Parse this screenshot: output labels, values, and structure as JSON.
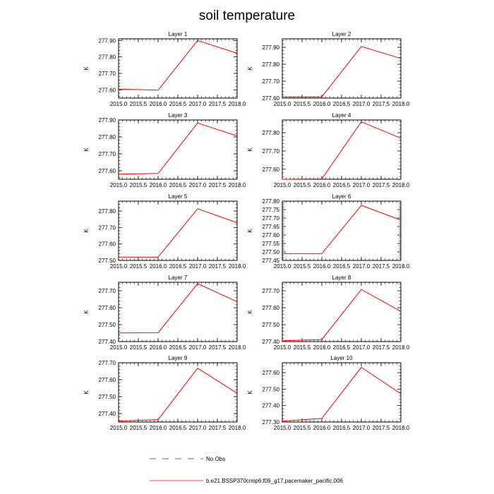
{
  "title": "soil temperature",
  "ylabel": "K",
  "line_color": "#ff0000",
  "legend": {
    "obs_label": "No Obs",
    "obs_color": "#6a5acd",
    "model_label": "b.e21.BSSP370cmip6.f09_g17.pacemaker_pacific.006",
    "model_color": "#ff0000"
  },
  "chart_data": [
    {
      "type": "line",
      "title": "Layer 1",
      "x": [
        2015,
        2016,
        2017,
        2018
      ],
      "y": [
        277.605,
        277.598,
        277.9,
        277.822
      ],
      "xlim": [
        2015,
        2018
      ],
      "ylim": [
        277.55,
        277.91
      ],
      "yticks": [
        277.6,
        277.7,
        277.8,
        277.9
      ],
      "ylabels": [
        "277.60",
        "277.70",
        "277.80",
        "277.90"
      ]
    },
    {
      "type": "line",
      "title": "Layer 2",
      "x": [
        2015,
        2016,
        2017,
        2018
      ],
      "y": [
        277.607,
        277.607,
        277.905,
        277.834
      ],
      "xlim": [
        2015,
        2018
      ],
      "ylim": [
        277.6,
        277.95
      ],
      "yticks": [
        277.6,
        277.7,
        277.8,
        277.9
      ],
      "ylabels": [
        "277.60",
        "277.70",
        "277.80",
        "277.90"
      ]
    },
    {
      "type": "line",
      "title": "Layer 3",
      "x": [
        2015,
        2016,
        2017,
        2018
      ],
      "y": [
        277.58,
        277.584,
        277.882,
        277.806
      ],
      "xlim": [
        2015,
        2018
      ],
      "ylim": [
        277.55,
        277.9
      ],
      "yticks": [
        277.6,
        277.7,
        277.8,
        277.9
      ],
      "ylabels": [
        "277.60",
        "277.70",
        "277.80",
        "277.90"
      ]
    },
    {
      "type": "line",
      "title": "Layer 4",
      "x": [
        2015,
        2016,
        2017,
        2018
      ],
      "y": [
        277.545,
        277.547,
        277.86,
        277.77
      ],
      "xlim": [
        2015,
        2018
      ],
      "ylim": [
        277.545,
        277.87
      ],
      "yticks": [
        277.6,
        277.7,
        277.8
      ],
      "ylabels": [
        "277.60",
        "277.70",
        "277.80"
      ]
    },
    {
      "type": "line",
      "title": "Layer 5",
      "x": [
        2015,
        2016,
        2017,
        2018
      ],
      "y": [
        277.52,
        277.52,
        277.814,
        277.729
      ],
      "xlim": [
        2015,
        2018
      ],
      "ylim": [
        277.5,
        277.86
      ],
      "yticks": [
        277.5,
        277.6,
        277.7,
        277.8
      ],
      "ylabels": [
        "277.50",
        "277.60",
        "277.70",
        "277.80"
      ]
    },
    {
      "type": "line",
      "title": "Layer 6",
      "x": [
        2015,
        2016,
        2017,
        2018
      ],
      "y": [
        277.49,
        277.49,
        277.775,
        277.688
      ],
      "xlim": [
        2015,
        2018
      ],
      "ylim": [
        277.45,
        277.8
      ],
      "yticks": [
        277.45,
        277.5,
        277.55,
        277.6,
        277.65,
        277.7,
        277.75,
        277.8
      ],
      "ylabels": [
        "277.45",
        "277.50",
        "277.55",
        "277.60",
        "277.65",
        "277.70",
        "277.75",
        "277.80"
      ]
    },
    {
      "type": "line",
      "title": "Layer 7",
      "x": [
        2015,
        2016,
        2017,
        2018
      ],
      "y": [
        277.451,
        277.452,
        277.742,
        277.636
      ],
      "xlim": [
        2015,
        2018
      ],
      "ylim": [
        277.4,
        277.75
      ],
      "yticks": [
        277.4,
        277.5,
        277.6,
        277.7
      ],
      "ylabels": [
        "277.40",
        "277.50",
        "277.60",
        "277.70"
      ]
    },
    {
      "type": "line",
      "title": "Layer 8",
      "x": [
        2015,
        2016,
        2017,
        2018
      ],
      "y": [
        277.405,
        277.412,
        277.708,
        277.578
      ],
      "xlim": [
        2015,
        2018
      ],
      "ylim": [
        277.4,
        277.75
      ],
      "yticks": [
        277.4,
        277.5,
        277.6,
        277.7
      ],
      "ylabels": [
        "277.40",
        "277.50",
        "277.60",
        "277.70"
      ]
    },
    {
      "type": "line",
      "title": "Layer 9",
      "x": [
        2015,
        2016,
        2017,
        2018
      ],
      "y": [
        277.356,
        277.364,
        277.668,
        277.52
      ],
      "xlim": [
        2015,
        2018
      ],
      "ylim": [
        277.35,
        277.7
      ],
      "yticks": [
        277.4,
        277.5,
        277.6,
        277.7
      ],
      "ylabels": [
        "277.40",
        "277.50",
        "277.60",
        "277.70"
      ]
    },
    {
      "type": "line",
      "title": "Layer 10",
      "x": [
        2015,
        2016,
        2017,
        2018
      ],
      "y": [
        277.305,
        277.322,
        277.632,
        277.472
      ],
      "xlim": [
        2015,
        2018
      ],
      "ylim": [
        277.3,
        277.66
      ],
      "yticks": [
        277.3,
        277.4,
        277.5,
        277.6
      ],
      "ylabels": [
        "277.30",
        "277.40",
        "277.50",
        "277.60"
      ]
    }
  ],
  "xticks": [
    2015,
    2015.5,
    2016,
    2016.5,
    2017,
    2017.5,
    2018
  ],
  "xlabels": [
    "2015.0",
    "2015.5",
    "2016.0",
    "2016.5",
    "2017.0",
    "2017.5",
    "2018.0"
  ]
}
